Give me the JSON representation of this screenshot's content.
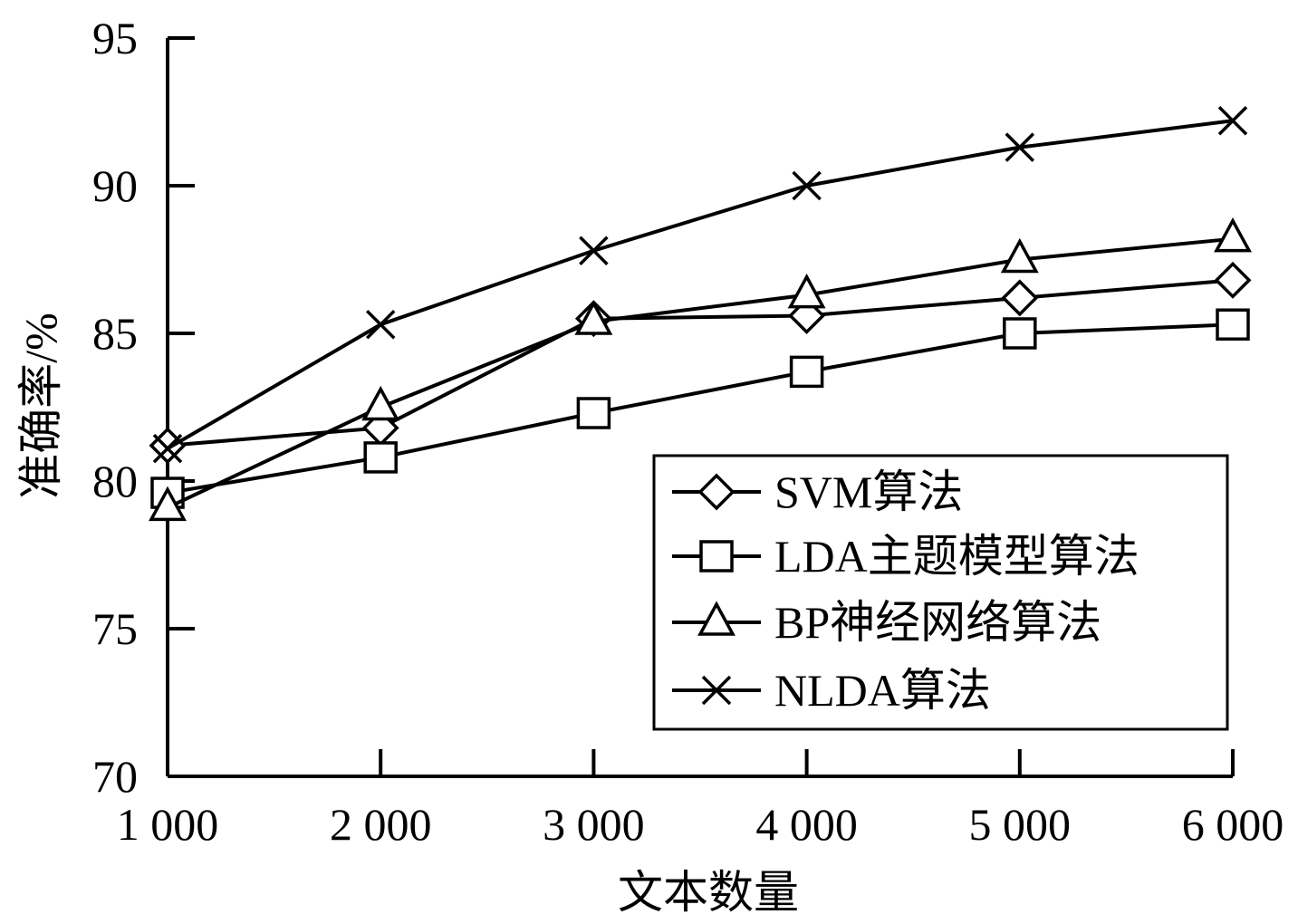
{
  "chart_data": {
    "type": "line",
    "title": "",
    "xlabel": "文本数量",
    "ylabel": "准确率/%",
    "x": [
      1000,
      2000,
      3000,
      4000,
      5000,
      6000
    ],
    "x_tick_labels": [
      "1 000",
      "2 000",
      "3 000",
      "4 000",
      "5 000",
      "6 000"
    ],
    "ylim": [
      70,
      95
    ],
    "y_ticks": [
      70,
      75,
      80,
      85,
      90,
      95
    ],
    "y_tick_labels": [
      "70",
      "75",
      "80",
      "85",
      "90",
      "95"
    ],
    "legend_position": "bottom-right",
    "series": [
      {
        "name": "SVM算法",
        "marker": "diamond",
        "values": [
          81.2,
          81.8,
          85.5,
          85.6,
          86.2,
          86.8
        ]
      },
      {
        "name": "LDA主题模型算法",
        "marker": "square",
        "values": [
          79.6,
          80.8,
          82.3,
          83.7,
          85.0,
          85.3
        ]
      },
      {
        "name": "BP神经网络算法",
        "marker": "triangle",
        "values": [
          79.1,
          82.5,
          85.4,
          86.3,
          87.5,
          88.2
        ]
      },
      {
        "name": "NLDA算法",
        "marker": "x",
        "values": [
          81.1,
          85.3,
          87.8,
          90.0,
          91.3,
          92.2
        ]
      }
    ]
  }
}
